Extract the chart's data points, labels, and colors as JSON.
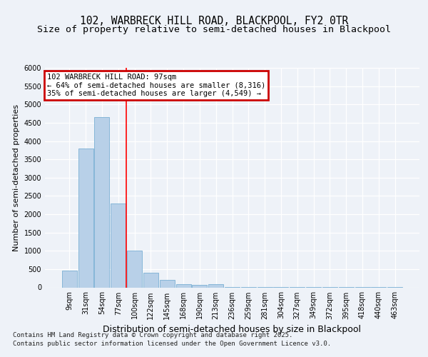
{
  "title1": "102, WARBRECK HILL ROAD, BLACKPOOL, FY2 0TR",
  "title2": "Size of property relative to semi-detached houses in Blackpool",
  "xlabel": "Distribution of semi-detached houses by size in Blackpool",
  "ylabel": "Number of semi-detached properties",
  "categories": [
    "9sqm",
    "31sqm",
    "54sqm",
    "77sqm",
    "100sqm",
    "122sqm",
    "145sqm",
    "168sqm",
    "190sqm",
    "213sqm",
    "236sqm",
    "259sqm",
    "281sqm",
    "304sqm",
    "327sqm",
    "349sqm",
    "372sqm",
    "395sqm",
    "418sqm",
    "440sqm",
    "463sqm"
  ],
  "values": [
    450,
    3800,
    4650,
    2300,
    1000,
    400,
    200,
    80,
    60,
    80,
    10,
    5,
    5,
    3,
    2,
    2,
    2,
    1,
    1,
    1,
    1
  ],
  "bar_color": "#b8d0e8",
  "bar_edge_color": "#7aafd4",
  "vline_pos": 3.5,
  "annotation_text_line1": "102 WARBRECK HILL ROAD: 97sqm",
  "annotation_text_line2": "← 64% of semi-detached houses are smaller (8,316)",
  "annotation_text_line3": "35% of semi-detached houses are larger (4,549) →",
  "ylim": [
    0,
    6000
  ],
  "yticks": [
    0,
    500,
    1000,
    1500,
    2000,
    2500,
    3000,
    3500,
    4000,
    4500,
    5000,
    5500,
    6000
  ],
  "footer1": "Contains HM Land Registry data © Crown copyright and database right 2025.",
  "footer2": "Contains public sector information licensed under the Open Government Licence v3.0.",
  "bg_color": "#eef2f8",
  "grid_color": "#ffffff",
  "title_fontsize": 10.5,
  "subtitle_fontsize": 9.5,
  "annotation_box_color": "#cc0000",
  "ann_fontsize": 7.5,
  "ylabel_fontsize": 8,
  "xlabel_fontsize": 9,
  "tick_fontsize": 7,
  "footer_fontsize": 6.5
}
